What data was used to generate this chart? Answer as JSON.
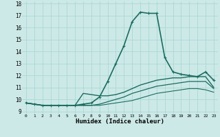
{
  "xlabel": "Humidex (Indice chaleur)",
  "xlim": [
    -0.5,
    23.5
  ],
  "ylim": [
    8.8,
    18.2
  ],
  "yticks": [
    9,
    10,
    11,
    12,
    13,
    14,
    15,
    16,
    17,
    18
  ],
  "xticks": [
    0,
    1,
    2,
    3,
    4,
    5,
    6,
    7,
    8,
    9,
    10,
    11,
    12,
    13,
    14,
    15,
    16,
    17,
    18,
    19,
    20,
    21,
    22,
    23
  ],
  "bg_color": "#cce9e7",
  "line_color": "#1a6b5e",
  "grid_color": "#aad8d5",
  "lines": [
    {
      "x": [
        0,
        1,
        2,
        3,
        4,
        5,
        6,
        7,
        8,
        9,
        10,
        11,
        12,
        13,
        14,
        15,
        16,
        17,
        18,
        19,
        20,
        21,
        22,
        23
      ],
      "y": [
        9.7,
        9.6,
        9.5,
        9.5,
        9.5,
        9.5,
        9.5,
        9.6,
        9.7,
        10.2,
        11.5,
        13.0,
        14.5,
        16.5,
        17.3,
        17.2,
        17.2,
        13.5,
        12.3,
        12.1,
        12.0,
        11.9,
        12.3,
        11.6
      ],
      "marker": true,
      "linewidth": 1.2
    },
    {
      "x": [
        0,
        1,
        2,
        3,
        4,
        5,
        6,
        7,
        8,
        9,
        10,
        11,
        12,
        13,
        14,
        15,
        16,
        17,
        18,
        19,
        20,
        21,
        22,
        23
      ],
      "y": [
        9.7,
        9.6,
        9.5,
        9.5,
        9.5,
        9.5,
        9.5,
        10.5,
        10.4,
        10.3,
        10.3,
        10.4,
        10.6,
        10.9,
        11.2,
        11.4,
        11.6,
        11.7,
        11.8,
        11.8,
        11.9,
        11.9,
        11.9,
        11.0
      ],
      "marker": false,
      "linewidth": 1.0
    },
    {
      "x": [
        0,
        1,
        2,
        3,
        4,
        5,
        6,
        7,
        8,
        9,
        10,
        11,
        12,
        13,
        14,
        15,
        16,
        17,
        18,
        19,
        20,
        21,
        22,
        23
      ],
      "y": [
        9.7,
        9.6,
        9.5,
        9.5,
        9.5,
        9.5,
        9.5,
        9.5,
        9.5,
        9.6,
        9.8,
        10.0,
        10.2,
        10.5,
        10.7,
        10.9,
        11.1,
        11.2,
        11.3,
        11.4,
        11.5,
        11.5,
        11.5,
        10.9
      ],
      "marker": false,
      "linewidth": 0.9
    },
    {
      "x": [
        0,
        1,
        2,
        3,
        4,
        5,
        6,
        7,
        8,
        9,
        10,
        11,
        12,
        13,
        14,
        15,
        16,
        17,
        18,
        19,
        20,
        21,
        22,
        23
      ],
      "y": [
        9.7,
        9.6,
        9.5,
        9.5,
        9.5,
        9.5,
        9.5,
        9.5,
        9.5,
        9.5,
        9.6,
        9.7,
        9.8,
        9.9,
        10.1,
        10.3,
        10.5,
        10.6,
        10.7,
        10.8,
        10.9,
        10.9,
        10.8,
        10.6
      ],
      "marker": false,
      "linewidth": 0.8
    }
  ]
}
